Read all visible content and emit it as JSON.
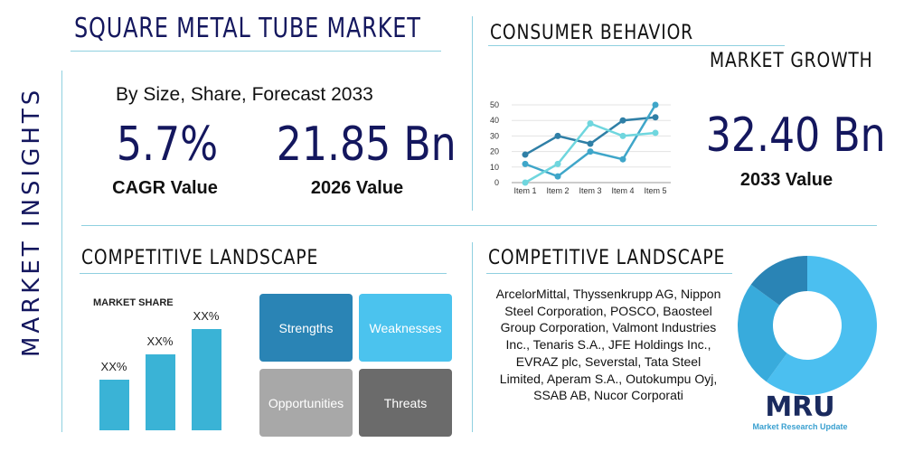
{
  "side_label": "MARKET INSIGHTS",
  "title": "SQUARE METAL TUBE MARKET",
  "subtitle": "By Size, Share, Forecast 2033",
  "cagr": {
    "value": "5.7%",
    "label": "CAGR Value"
  },
  "value_2026": {
    "value": "21.85 Bn",
    "label": "2026 Value"
  },
  "consumer_header": "CONSUMER BEHAVIOR",
  "market_growth": "MARKET GROWTH",
  "value_2033": {
    "value": "32.40 Bn",
    "label": "2033 Value"
  },
  "competitive_left": "COMPETITIVE LANDSCAPE",
  "market_share_label": "MARKET SHARE",
  "bars": [
    {
      "label": "XX%",
      "value": 1
    },
    {
      "label": "XX%",
      "value": 1.5
    },
    {
      "label": "XX%",
      "value": 2
    }
  ],
  "swot": {
    "strengths": "Strengths",
    "weaknesses": "Weaknesses",
    "opportunities": "Opportunities",
    "threats": "Threats"
  },
  "competitive_right": "COMPETITIVE LANDSCAPE",
  "companies": "ArcelorMittal, Thyssenkrupp AG, Nippon Steel Corporation, POSCO, Baosteel Group Corporation, Valmont Industries Inc., Tenaris S.A., JFE Holdings Inc., EVRAZ plc, Severstal, Tata Steel Limited, Aperam S.A., Outokumpu Oyj, SSAB AB, Nucor Corporati",
  "logo": {
    "mark": "MRU",
    "name": "Market Research Update"
  },
  "chart_data": [
    {
      "type": "line",
      "categories": [
        "Item 1",
        "Item 2",
        "Item 3",
        "Item 4",
        "Item 5"
      ],
      "ylim": [
        0,
        50
      ],
      "yticks": [
        0,
        10,
        20,
        30,
        40,
        50
      ],
      "grid": true,
      "series": [
        {
          "values": [
            18,
            30,
            25,
            40,
            42
          ],
          "color": "#2f7fa6"
        },
        {
          "values": [
            12,
            4,
            20,
            15,
            50
          ],
          "color": "#3fa6c9"
        },
        {
          "values": [
            0,
            12,
            38,
            30,
            32
          ],
          "color": "#6fd6de"
        }
      ]
    },
    {
      "type": "pie",
      "donut": true,
      "values": [
        60,
        25,
        15
      ],
      "colors": [
        "#4bbff0",
        "#38abdc",
        "#2a84b5"
      ]
    }
  ],
  "colors": {
    "navy": "#14175e",
    "accent": "#3ab3d6"
  }
}
